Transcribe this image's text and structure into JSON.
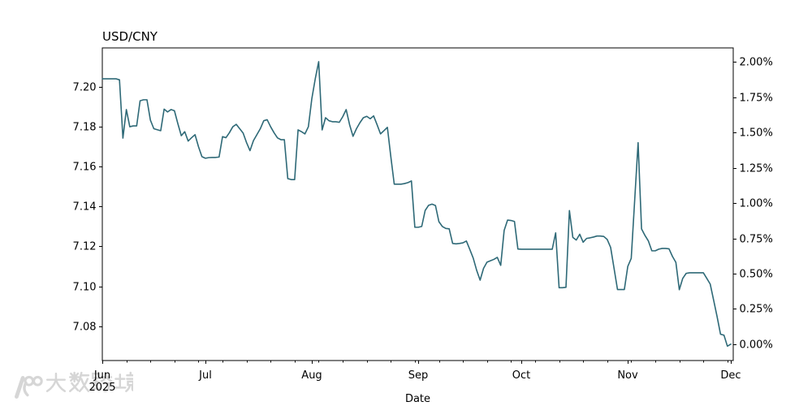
{
  "title": "USD/CNY",
  "watermark": {
    "logo": "100-logo",
    "text": "大数跨境"
  },
  "chart_data": {
    "type": "line",
    "title": "USD/CNY",
    "xlabel": "Date",
    "background": "#ffffff",
    "grid": false,
    "legend": null,
    "line_color": "#2e6977",
    "line_width": 1.6,
    "axis_color": "#000000",
    "x_start_date": "2025-06-01",
    "frequency": "daily",
    "xlim_days": [
      0,
      183.7
    ],
    "ylim": [
      7.0628,
      7.2195
    ],
    "x_axis": {
      "ticks": [
        {
          "label": "Jun",
          "day": 0,
          "sub": "2025"
        },
        {
          "label": "Jul",
          "day": 30
        },
        {
          "label": "Aug",
          "day": 61
        },
        {
          "label": "Sep",
          "day": 92
        },
        {
          "label": "Oct",
          "day": 122
        },
        {
          "label": "Nov",
          "day": 153
        },
        {
          "label": "Dec",
          "day": 183
        }
      ],
      "minor_tick_every_days": 7
    },
    "left_axis": {
      "ticks": [
        7.2,
        7.18,
        7.16,
        7.14,
        7.12,
        7.1,
        7.08
      ],
      "decimals": 2
    },
    "right_axis": {
      "format": "percent_change_vs_last",
      "base_value": 7.071,
      "ticks": [
        {
          "label": "2.00%",
          "pct": 2.0
        },
        {
          "label": "1.75%",
          "pct": 1.75
        },
        {
          "label": "1.50%",
          "pct": 1.5
        },
        {
          "label": "1.25%",
          "pct": 1.25
        },
        {
          "label": "1.00%",
          "pct": 1.0
        },
        {
          "label": "0.75%",
          "pct": 0.75
        },
        {
          "label": "0.50%",
          "pct": 0.5
        },
        {
          "label": "0.25%",
          "pct": 0.25
        },
        {
          "label": "0.00%",
          "pct": 0.0
        }
      ]
    },
    "series": [
      {
        "name": "USD/CNY",
        "values": [
          7.204,
          7.204,
          7.204,
          7.204,
          7.204,
          7.2035,
          7.1743,
          7.1886,
          7.18,
          7.1804,
          7.1804,
          7.193,
          7.1935,
          7.1935,
          7.1833,
          7.179,
          7.1785,
          7.178,
          7.1888,
          7.1874,
          7.1886,
          7.188,
          7.1815,
          7.1755,
          7.1775,
          7.1728,
          7.1745,
          7.176,
          7.17,
          7.165,
          7.1642,
          7.1645,
          7.1646,
          7.1646,
          7.1648,
          7.175,
          7.1745,
          7.177,
          7.18,
          7.1812,
          7.179,
          7.1768,
          7.172,
          7.168,
          7.173,
          7.176,
          7.179,
          7.183,
          7.1835,
          7.18,
          7.177,
          7.1744,
          7.1735,
          7.1735,
          7.154,
          7.1535,
          7.1535,
          7.1784,
          7.1775,
          7.1764,
          7.18,
          7.194,
          7.204,
          7.2126,
          7.1784,
          7.1845,
          7.183,
          7.1825,
          7.1825,
          7.1822,
          7.185,
          7.1886,
          7.181,
          7.1752,
          7.179,
          7.182,
          7.1845,
          7.1852,
          7.184,
          7.1854,
          7.181,
          7.1764,
          7.178,
          7.1797,
          7.165,
          7.1512,
          7.1512,
          7.1512,
          7.1515,
          7.152,
          7.1528,
          7.1296,
          7.1296,
          7.13,
          7.138,
          7.1406,
          7.1412,
          7.1405,
          7.1324,
          7.13,
          7.129,
          7.1288,
          7.1215,
          7.1213,
          7.1215,
          7.1218,
          7.1227,
          7.1185,
          7.1141,
          7.108,
          7.1031,
          7.109,
          7.1121,
          7.1128,
          7.1135,
          7.1145,
          7.1105,
          7.128,
          7.1332,
          7.133,
          7.1325,
          7.1187,
          7.1186,
          7.1186,
          7.1186,
          7.1186,
          7.1186,
          7.1186,
          7.1186,
          7.1186,
          7.1186,
          7.1186,
          7.1268,
          7.0993,
          7.0993,
          7.0995,
          7.138,
          7.1245,
          7.1232,
          7.1261,
          7.1221,
          7.124,
          7.1243,
          7.1247,
          7.1252,
          7.1252,
          7.125,
          7.1235,
          7.1195,
          7.109,
          7.0984,
          7.0984,
          7.0984,
          7.11,
          7.114,
          7.143,
          7.172,
          7.1288,
          7.1255,
          7.1227,
          7.1178,
          7.1178,
          7.1186,
          7.119,
          7.119,
          7.1188,
          7.115,
          7.112,
          7.0983,
          7.104,
          7.1065,
          7.1068,
          7.1068,
          7.1068,
          7.1068,
          7.1068,
          7.104,
          7.1011,
          7.093,
          7.0848,
          7.076,
          7.0755,
          7.07,
          7.071
        ]
      }
    ]
  }
}
